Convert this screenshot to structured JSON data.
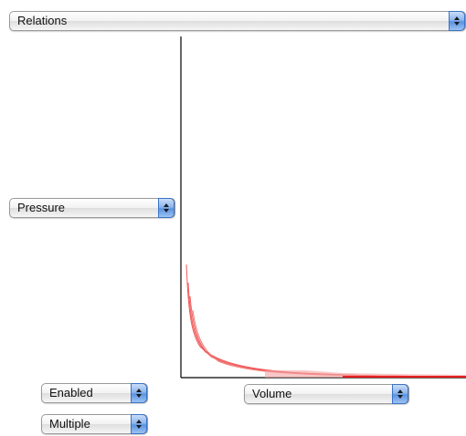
{
  "relations_menu": {
    "selected": "Relations"
  },
  "y_axis_menu": {
    "selected": "Pressure"
  },
  "x_axis_menu": {
    "selected": "Volume"
  },
  "enabled_menu": {
    "selected": "Enabled"
  },
  "multiple_menu": {
    "selected": "Multiple"
  },
  "colors": {
    "curve": "#f05a5a",
    "curve_floor": "#e82020",
    "axis": "#000000",
    "popup_arrow_accent": "#5a93e1"
  },
  "icons": {
    "popup_arrows": "up-down-arrows-icon"
  }
}
